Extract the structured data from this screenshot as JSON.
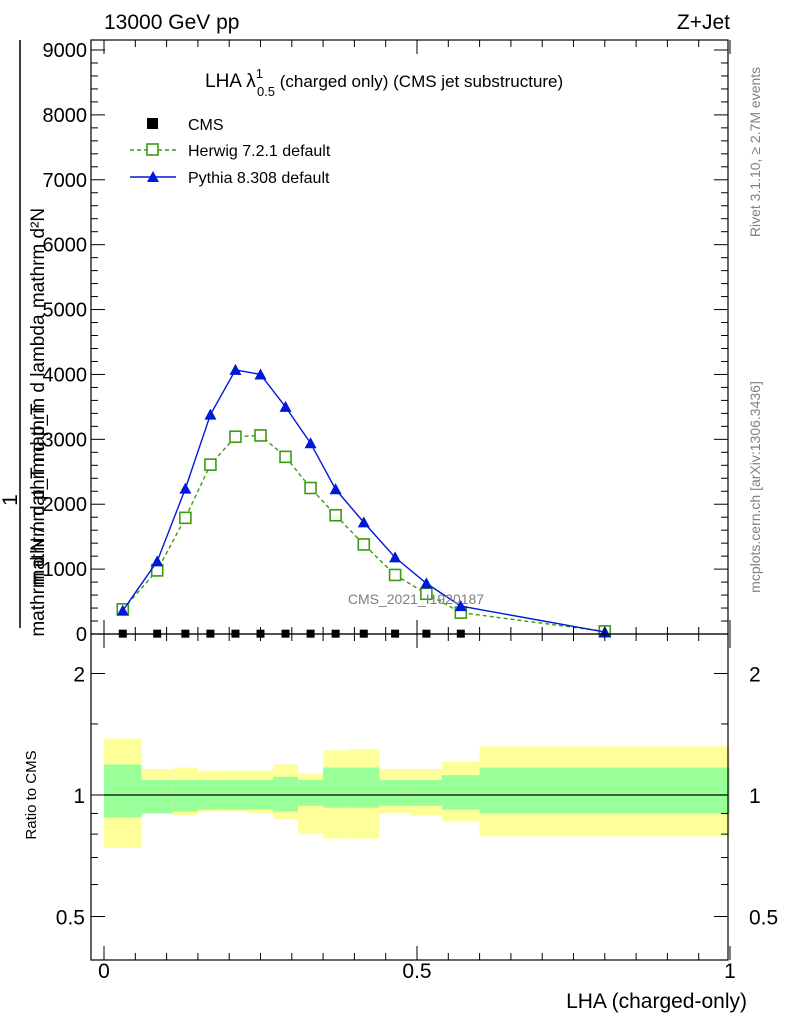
{
  "header": {
    "energy_label": "13000 GeV pp",
    "process_label": "Z+Jet"
  },
  "side_text": {
    "rivet": "Rivet 3.1.10, ≥ 2.7M events",
    "mcplots": "mcplots.cern.ch [arXiv:1306.3436]"
  },
  "watermark": "CMS_2021_I1920187",
  "colors": {
    "herwig": "#3a9b10",
    "pythia": "#0018d8",
    "cms": "#000000",
    "band_inner": "#99ff99",
    "band_outer": "#ffff99"
  },
  "chart_data": [
    {
      "type": "line",
      "title": "LHA λ",
      "title_sup": "1",
      "title_sub": "0.5",
      "title_suffix": " (charged only) (CMS jet substructure)",
      "ylabel_lines": [
        "mathrm d²N",
        "mathrm d p_T mathrm d lambda",
        "1",
        "mathrm d N / mathrm d p_T"
      ],
      "xlim": [
        0,
        1
      ],
      "ylim": [
        0,
        9000
      ],
      "yticks": [
        0,
        1000,
        2000,
        3000,
        4000,
        5000,
        6000,
        7000,
        8000,
        9000
      ],
      "ytick_labels": [
        "0",
        "1000",
        "2000",
        "3000",
        "4000",
        "5000",
        "6000",
        "7000",
        "8000",
        "9000"
      ],
      "legend": [
        "CMS",
        "Herwig 7.2.1 default",
        "Pythia 8.308 default"
      ],
      "legend_position": "top-left",
      "series": [
        {
          "name": "CMS",
          "marker": "square",
          "x": [
            0.03,
            0.085,
            0.13,
            0.17,
            0.21,
            0.25,
            0.29,
            0.33,
            0.37,
            0.415,
            0.465,
            0.515,
            0.57
          ],
          "y": [
            5,
            5,
            5,
            5,
            5,
            5,
            5,
            5,
            5,
            5,
            5,
            5,
            5
          ]
        },
        {
          "name": "Herwig 7.2.1 default",
          "marker": "open-square",
          "style": "dashed",
          "x": [
            0.03,
            0.085,
            0.13,
            0.17,
            0.21,
            0.25,
            0.29,
            0.33,
            0.37,
            0.415,
            0.465,
            0.515,
            0.57,
            0.8
          ],
          "y": [
            380,
            980,
            1790,
            2610,
            3040,
            3060,
            2730,
            2250,
            1830,
            1380,
            910,
            620,
            330,
            40
          ]
        },
        {
          "name": "Pythia 8.308 default",
          "marker": "triangle",
          "style": "solid",
          "x": [
            0.03,
            0.085,
            0.13,
            0.17,
            0.21,
            0.25,
            0.29,
            0.33,
            0.37,
            0.415,
            0.465,
            0.515,
            0.57,
            0.8
          ],
          "y": [
            360,
            1120,
            2240,
            3380,
            4070,
            4000,
            3500,
            2940,
            2230,
            1720,
            1180,
            780,
            430,
            30
          ]
        }
      ]
    },
    {
      "type": "area",
      "ylabel": "Ratio to CMS",
      "xlabel": "LHA (charged-only)",
      "xlim": [
        0,
        1
      ],
      "xticks": [
        0,
        0.5,
        1
      ],
      "xtick_labels": [
        "0",
        "0.5",
        "1"
      ],
      "yticks": [
        0.5,
        1,
        2
      ],
      "ytick_labels": [
        "0.5",
        "1",
        "2"
      ],
      "yscale": "log",
      "ylim": [
        0.4,
        2.4
      ],
      "reference_line": 1,
      "bands": {
        "edges": [
          0,
          0.06,
          0.11,
          0.15,
          0.19,
          0.23,
          0.27,
          0.31,
          0.35,
          0.39,
          0.44,
          0.49,
          0.54,
          0.6,
          1.0
        ],
        "inner_low": [
          0.88,
          0.9,
          0.91,
          0.92,
          0.92,
          0.92,
          0.91,
          0.94,
          0.93,
          0.93,
          0.94,
          0.94,
          0.92,
          0.9
        ],
        "inner_high": [
          1.19,
          1.09,
          1.09,
          1.09,
          1.09,
          1.09,
          1.11,
          1.09,
          1.17,
          1.17,
          1.09,
          1.09,
          1.12,
          1.17
        ],
        "outer_low": [
          0.74,
          0.9,
          0.89,
          0.91,
          0.91,
          0.9,
          0.87,
          0.8,
          0.78,
          0.78,
          0.9,
          0.89,
          0.86,
          0.79
        ],
        "outer_high": [
          1.38,
          1.16,
          1.17,
          1.15,
          1.15,
          1.15,
          1.19,
          1.13,
          1.29,
          1.3,
          1.16,
          1.16,
          1.21,
          1.32
        ]
      }
    }
  ]
}
